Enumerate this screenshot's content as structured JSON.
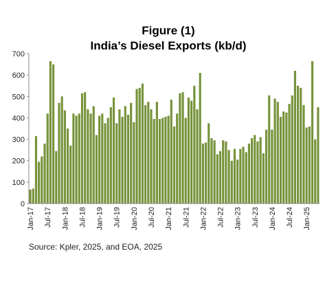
{
  "chart_data": {
    "type": "bar",
    "title": "Figure (1)",
    "subtitle": "India’s Diesel Exports (kb/d)",
    "source": "Source: Kpler, 2025, and EOA, 2025",
    "color": "#77933c",
    "ylim": [
      0,
      700
    ],
    "yticks": [
      0,
      100,
      200,
      300,
      400,
      500,
      600,
      700
    ],
    "grid": false,
    "categories": [
      "Jan-17",
      null,
      null,
      null,
      null,
      null,
      "Jul-17",
      null,
      null,
      null,
      null,
      null,
      "Jan-18",
      null,
      null,
      null,
      null,
      null,
      "Jul-18",
      null,
      null,
      null,
      null,
      null,
      "Jan-19",
      null,
      null,
      null,
      null,
      null,
      "Jul-19",
      null,
      null,
      null,
      null,
      null,
      "Jan-20",
      null,
      null,
      null,
      null,
      null,
      "Jul-20",
      null,
      null,
      null,
      null,
      null,
      "Jan-21",
      null,
      null,
      null,
      null,
      null,
      "Jul-21",
      null,
      null,
      null,
      null,
      null,
      "Jan-22",
      null,
      null,
      null,
      null,
      null,
      "Jul-22",
      null,
      null,
      null,
      null,
      null,
      "Jan-23",
      null,
      null,
      null,
      null,
      null,
      "Jul-23",
      null,
      null,
      null,
      null,
      null,
      "Jan-24",
      null,
      null,
      null,
      null,
      null,
      "Jul-24",
      null,
      null,
      null,
      null,
      null,
      "Jan-25",
      null,
      null,
      null,
      null
    ],
    "values": [
      65,
      70,
      315,
      195,
      220,
      280,
      420,
      665,
      650,
      245,
      470,
      500,
      435,
      350,
      270,
      420,
      410,
      420,
      515,
      520,
      440,
      420,
      455,
      320,
      410,
      420,
      375,
      400,
      450,
      495,
      375,
      440,
      405,
      455,
      415,
      470,
      380,
      535,
      540,
      560,
      460,
      475,
      440,
      395,
      475,
      395,
      400,
      405,
      410,
      485,
      360,
      420,
      515,
      520,
      400,
      495,
      480,
      550,
      440,
      610,
      280,
      285,
      375,
      305,
      295,
      230,
      245,
      295,
      290,
      250,
      200,
      255,
      205,
      255,
      265,
      240,
      280,
      305,
      320,
      290,
      310,
      235,
      345,
      505,
      345,
      490,
      475,
      405,
      430,
      425,
      465,
      505,
      620,
      550,
      540,
      460,
      355,
      360,
      665,
      300,
      450
    ]
  }
}
